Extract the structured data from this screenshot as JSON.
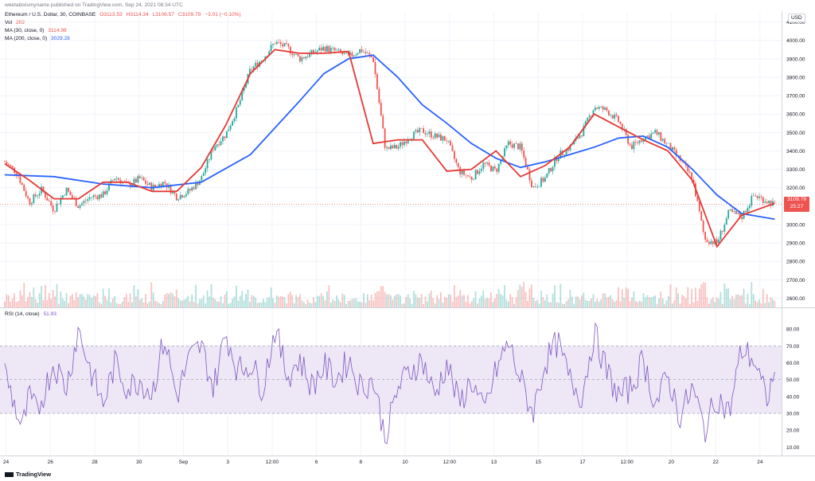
{
  "credit": "weetabixismyname published on TradingView.com, Sep 24, 2021 08:34 UTC",
  "header": {
    "symbol": "Ethereum / U.S. Dollar, 30, COINBASE",
    "ohlc": {
      "o": "O3113.53",
      "h": "H3114.34",
      "l": "L3106.57",
      "c": "C3109.79",
      "chg": "−3.01 (−0.10%)"
    },
    "vol_label": "Vol",
    "vol_value": "202",
    "ma30_label": "MA (30, close, 0)",
    "ma30_value": "3114.98",
    "ma200_label": "MA (200, close, 0)",
    "ma200_value": "3029.28"
  },
  "currency_button": "USD",
  "last_price": {
    "value": "3109.79",
    "countdown": "25:27"
  },
  "rsi_header": {
    "label": "RSI (14, close)",
    "value": "51.93"
  },
  "footer_logo": "TradingView",
  "colors": {
    "up": "#26a69a",
    "down": "#ef5350",
    "ma30": "#e53935",
    "ma200": "#2962ff",
    "rsi": "#7e57c2",
    "rsi_band": "#ede7f6"
  },
  "chart_data": [
    {
      "type": "line",
      "title": "Ethereum / U.S. Dollar, 30, COINBASE",
      "ylabel": "USD",
      "ylim": [
        2550,
        4150
      ],
      "y_ticks": [
        "4100.00",
        "4000.00",
        "3900.00",
        "3800.00",
        "3700.00",
        "3600.00",
        "3500.00",
        "3400.00",
        "3300.00",
        "3200.00",
        "3100.00",
        "3000.00",
        "2900.00",
        "2800.00",
        "2700.00",
        "2600.00"
      ],
      "x_ticks": [
        "24",
        "26",
        "28",
        "30",
        "Sep",
        "3",
        "12:00",
        "6",
        "8",
        "10",
        "12:00",
        "13",
        "15",
        "17",
        "12:00",
        "20",
        "22",
        "24"
      ],
      "series": [
        {
          "name": "price",
          "x": [
            0,
            0.5,
            1,
            1.5,
            2,
            2.5,
            3,
            3.5,
            4,
            4.5,
            5,
            5.5,
            6,
            6.5,
            7,
            7.5,
            8,
            8.5,
            9,
            9.5,
            10,
            10.5,
            11,
            11.5,
            12,
            12.5,
            13,
            13.5,
            14,
            14.5,
            15,
            15.5,
            16,
            16.5,
            17,
            17.5,
            18,
            18.5,
            19,
            19.5,
            20,
            20.5,
            21,
            21.5,
            22,
            22.5,
            23,
            23.5,
            24,
            24.5,
            25,
            25.5,
            26,
            26.5,
            27,
            27.5,
            28,
            28.5,
            29,
            29.5,
            30,
            30.5,
            31,
            31.35
          ],
          "values": [
            3340,
            3280,
            3120,
            3190,
            3080,
            3190,
            3100,
            3150,
            3160,
            3260,
            3210,
            3250,
            3200,
            3230,
            3150,
            3180,
            3250,
            3420,
            3490,
            3640,
            3840,
            3900,
            3990,
            3960,
            3900,
            3930,
            3960,
            3940,
            3910,
            3950,
            3900,
            3410,
            3420,
            3480,
            3510,
            3480,
            3460,
            3290,
            3250,
            3330,
            3290,
            3440,
            3420,
            3200,
            3250,
            3370,
            3420,
            3500,
            3640,
            3620,
            3560,
            3420,
            3470,
            3500,
            3430,
            3350,
            3250,
            2920,
            2900,
            3070,
            3040,
            3160,
            3130,
            3110
          ]
        },
        {
          "name": "MA (30, close, 0)",
          "x": [
            0,
            1,
            2,
            3,
            4,
            5,
            6,
            7,
            8,
            9,
            10,
            11,
            12,
            13,
            14,
            15,
            16,
            17,
            18,
            19,
            20,
            21,
            22,
            23,
            24,
            25,
            26,
            27,
            28,
            29,
            30,
            31.35
          ],
          "values": [
            3330,
            3240,
            3140,
            3140,
            3230,
            3230,
            3180,
            3180,
            3310,
            3540,
            3820,
            3950,
            3930,
            3930,
            3940,
            3440,
            3460,
            3460,
            3290,
            3300,
            3400,
            3260,
            3320,
            3420,
            3600,
            3530,
            3460,
            3400,
            3240,
            2880,
            3050,
            3114.98
          ]
        },
        {
          "name": "MA (200, close, 0)",
          "x": [
            0,
            2,
            4,
            6,
            8,
            10,
            12,
            13,
            14,
            15,
            16,
            17,
            18,
            19,
            20,
            21,
            22,
            23,
            24,
            25,
            26,
            27,
            28,
            29,
            30,
            31.35
          ],
          "values": [
            3270,
            3260,
            3220,
            3200,
            3230,
            3380,
            3670,
            3820,
            3900,
            3920,
            3800,
            3650,
            3550,
            3440,
            3360,
            3310,
            3340,
            3380,
            3420,
            3470,
            3480,
            3420,
            3300,
            3160,
            3060,
            3029.28
          ]
        }
      ]
    },
    {
      "type": "line",
      "title": "RSI (14, close)",
      "ylim": [
        5,
        90
      ],
      "y_ticks": [
        "80.00",
        "70.00",
        "60.00",
        "50.00",
        "40.00",
        "30.00",
        "20.00",
        "10.00"
      ],
      "band": [
        30,
        70
      ],
      "midline": 50,
      "series": [
        {
          "name": "RSI (14, close)",
          "x": [
            0,
            0.7,
            1,
            1.3,
            2,
            2.5,
            3,
            3.5,
            4,
            4.5,
            5,
            5.5,
            6,
            6.5,
            7,
            7.5,
            8,
            8.5,
            9,
            9.5,
            10,
            10.5,
            11,
            11.5,
            12,
            12.5,
            13,
            13.5,
            14,
            14.5,
            15,
            15.5,
            16,
            16.5,
            17,
            17.5,
            18,
            18.5,
            19,
            19.5,
            20,
            20.5,
            21,
            21.5,
            22,
            22.5,
            23,
            23.5,
            24,
            24.5,
            25,
            25.5,
            26,
            26.5,
            27,
            27.5,
            28,
            28.5,
            29,
            29.5,
            30,
            30.5,
            31,
            31.35
          ],
          "values": [
            55,
            20,
            40,
            30,
            60,
            45,
            80,
            55,
            35,
            60,
            45,
            50,
            42,
            75,
            40,
            62,
            70,
            45,
            78,
            55,
            60,
            45,
            80,
            52,
            62,
            46,
            58,
            50,
            62,
            45,
            50,
            15,
            45,
            55,
            62,
            40,
            60,
            35,
            50,
            30,
            55,
            72,
            50,
            30,
            60,
            72,
            50,
            40,
            78,
            55,
            40,
            45,
            62,
            35,
            52,
            28,
            45,
            20,
            40,
            30,
            68,
            62,
            38,
            51.93
          ]
        }
      ]
    }
  ]
}
